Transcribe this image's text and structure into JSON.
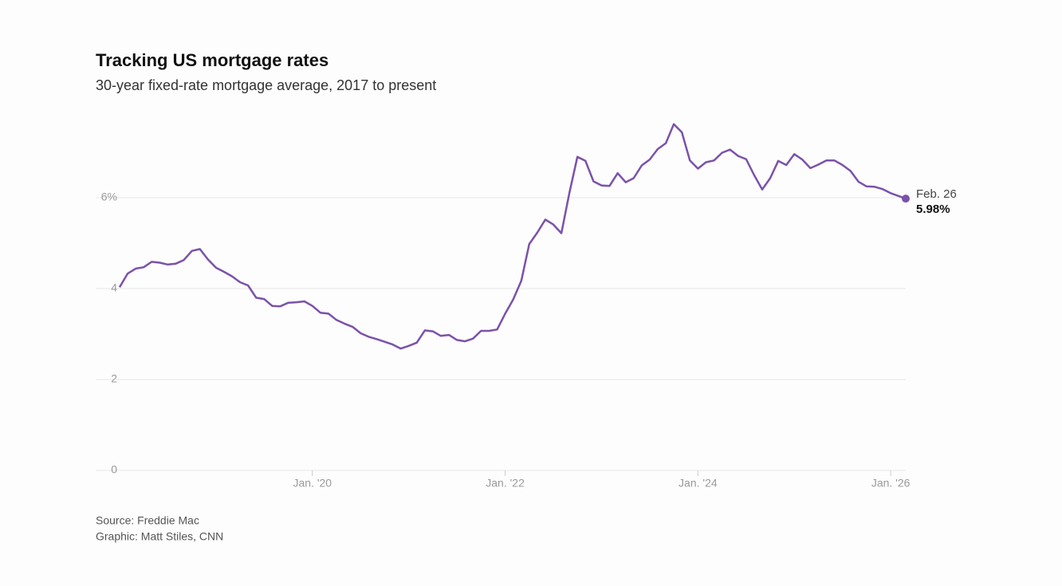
{
  "chart_data": {
    "type": "line",
    "title": "Tracking US mortgage rates",
    "subtitle": "30-year fixed-rate mortgage average, 2017 to present",
    "source": "Source: Freddie Mac",
    "credit": "Graphic: Matt Stiles, CNN",
    "x": [
      2018,
      2018.083,
      2018.167,
      2018.25,
      2018.333,
      2018.417,
      2018.5,
      2018.583,
      2018.667,
      2018.75,
      2018.833,
      2018.917,
      2019,
      2019.083,
      2019.167,
      2019.25,
      2019.333,
      2019.417,
      2019.5,
      2019.583,
      2019.667,
      2019.75,
      2019.833,
      2019.917,
      2020,
      2020.083,
      2020.167,
      2020.25,
      2020.333,
      2020.417,
      2020.5,
      2020.583,
      2020.667,
      2020.75,
      2020.833,
      2020.917,
      2021,
      2021.083,
      2021.167,
      2021.25,
      2021.333,
      2021.417,
      2021.5,
      2021.583,
      2021.667,
      2021.75,
      2021.833,
      2021.917,
      2022,
      2022.083,
      2022.167,
      2022.25,
      2022.333,
      2022.417,
      2022.5,
      2022.583,
      2022.667,
      2022.75,
      2022.833,
      2022.917,
      2023,
      2023.083,
      2023.167,
      2023.25,
      2023.333,
      2023.417,
      2023.5,
      2023.583,
      2023.667,
      2023.75,
      2023.833,
      2023.917,
      2024,
      2024.083,
      2024.167,
      2024.25,
      2024.333,
      2024.417,
      2024.5,
      2024.583,
      2024.667,
      2024.75,
      2024.833,
      2024.917,
      2025,
      2025.083,
      2025.167,
      2025.25,
      2025.333,
      2025.417,
      2025.5,
      2025.583,
      2025.667,
      2025.75,
      2025.833,
      2025.917,
      2026,
      2026.156
    ],
    "series": [
      {
        "name": "30-year fixed",
        "color": "#7b52a9",
        "values": [
          4.03,
          4.33,
          4.44,
          4.47,
          4.59,
          4.57,
          4.53,
          4.55,
          4.63,
          4.83,
          4.87,
          4.64,
          4.46,
          4.37,
          4.27,
          4.14,
          4.07,
          3.8,
          3.77,
          3.62,
          3.61,
          3.69,
          3.7,
          3.72,
          3.62,
          3.47,
          3.45,
          3.31,
          3.23,
          3.16,
          3.02,
          2.94,
          2.89,
          2.83,
          2.77,
          2.68,
          2.74,
          2.81,
          3.08,
          3.06,
          2.96,
          2.98,
          2.87,
          2.84,
          2.9,
          3.07,
          3.07,
          3.1,
          3.45,
          3.76,
          4.17,
          4.98,
          5.23,
          5.52,
          5.41,
          5.22,
          6.11,
          6.9,
          6.81,
          6.36,
          6.27,
          6.26,
          6.54,
          6.34,
          6.43,
          6.71,
          6.84,
          7.07,
          7.2,
          7.62,
          7.44,
          6.82,
          6.64,
          6.78,
          6.82,
          6.99,
          7.06,
          6.92,
          6.85,
          6.5,
          6.18,
          6.43,
          6.81,
          6.72,
          6.96,
          6.84,
          6.65,
          6.73,
          6.82,
          6.82,
          6.72,
          6.59,
          6.35,
          6.25,
          6.24,
          6.19,
          6.1,
          5.98
        ]
      }
    ],
    "annotation": {
      "label": "Feb. 26",
      "value_label": "5.98%"
    },
    "xlim": [
      2018,
      2026.156
    ],
    "xticks": [
      {
        "value": 2020,
        "label": "Jan. '20"
      },
      {
        "value": 2022,
        "label": "Jan. '22"
      },
      {
        "value": 2024,
        "label": "Jan. '24"
      },
      {
        "value": 2026,
        "label": "Jan. '26"
      }
    ],
    "ylim": [
      0,
      8
    ],
    "yticks": [
      0,
      2,
      4,
      {
        "value": 6,
        "label": "6%"
      }
    ],
    "grid": true
  }
}
